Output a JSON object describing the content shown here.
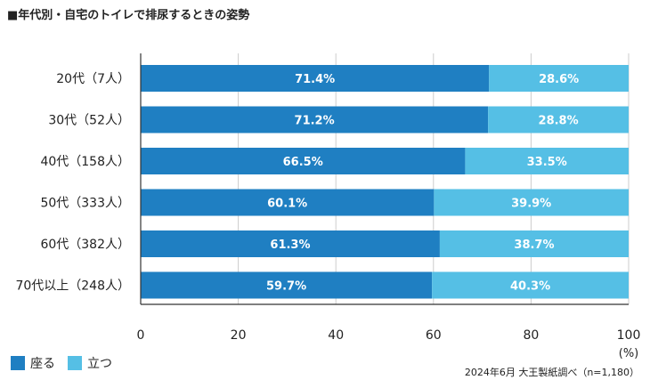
{
  "title": "■年代別・自宅のトイレで排尿するときの姿勢",
  "source": "2024年6月 大王製紙調べ（n=1,180）",
  "colors": {
    "sit": "#1f7fc2",
    "stand": "#55bfe5",
    "grid": "#cccccc",
    "axis": "#333333"
  },
  "chart_data": {
    "type": "bar",
    "orientation": "horizontal",
    "stacked": true,
    "categories": [
      "20代（7人）",
      "30代（52人）",
      "40代（158人）",
      "50代（333人）",
      "60代（382人）",
      "70代以上（248人）"
    ],
    "series": [
      {
        "name": "座る",
        "values": [
          71.4,
          71.2,
          66.5,
          60.1,
          61.3,
          59.7
        ],
        "labels": [
          "71.4%",
          "71.2%",
          "66.5%",
          "60.1%",
          "61.3%",
          "59.7%"
        ]
      },
      {
        "name": "立つ",
        "values": [
          28.6,
          28.8,
          33.5,
          39.9,
          38.7,
          40.3
        ],
        "labels": [
          "28.6%",
          "28.8%",
          "33.5%",
          "39.9%",
          "38.7%",
          "40.3%"
        ]
      }
    ],
    "xlim": [
      0,
      100
    ],
    "xticks": [
      "0",
      "20",
      "40",
      "60",
      "80",
      "100"
    ],
    "xunit": "(%)",
    "grid": true,
    "legend_position": "bottom-left"
  }
}
